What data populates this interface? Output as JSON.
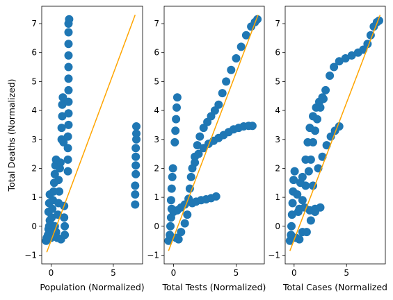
{
  "chart_data": [
    {
      "type": "scatter",
      "xlabel": "Population (Normalized)",
      "ylabel": "Total Deaths (Normalized)",
      "xlim": [
        -0.75,
        7.35
      ],
      "ylim": [
        -1.3,
        7.6
      ],
      "xticks": [
        {
          "v": 0,
          "label": "0"
        },
        {
          "v": 5,
          "label": "5"
        }
      ],
      "yticks": [
        {
          "v": -1,
          "label": "−1"
        },
        {
          "v": 0,
          "label": "0"
        },
        {
          "v": 1,
          "label": "1"
        },
        {
          "v": 2,
          "label": "2"
        },
        {
          "v": 3,
          "label": "3"
        },
        {
          "v": 4,
          "label": "4"
        },
        {
          "v": 5,
          "label": "5"
        },
        {
          "v": 6,
          "label": "6"
        },
        {
          "v": 7,
          "label": "7"
        }
      ],
      "grid": false,
      "marker_color": "#1f77b4",
      "fit_line_color": "#ffa500",
      "fit_line": [
        [
          -0.35,
          -0.9
        ],
        [
          6.75,
          7.3
        ]
      ],
      "series": [
        {
          "points": [
            [
              -0.4,
              -0.5
            ],
            [
              -0.35,
              -0.4
            ],
            [
              -0.3,
              -0.45
            ],
            [
              -0.25,
              -0.3
            ],
            [
              -0.2,
              -0.1
            ],
            [
              -0.15,
              0.0
            ],
            [
              -0.1,
              0.2
            ],
            [
              -0.2,
              0.5
            ],
            [
              -0.15,
              0.8
            ],
            [
              -0.1,
              1.1
            ],
            [
              -0.05,
              -0.2
            ],
            [
              0.0,
              -0.4
            ],
            [
              0.05,
              0.3
            ],
            [
              0.1,
              0.6
            ],
            [
              0.15,
              0.9
            ],
            [
              0.2,
              1.2
            ],
            [
              0.25,
              1.5
            ],
            [
              0.3,
              1.8
            ],
            [
              0.35,
              2.1
            ],
            [
              0.4,
              2.3
            ],
            [
              0.3,
              0.0
            ],
            [
              0.4,
              -0.2
            ],
            [
              0.5,
              -0.4
            ],
            [
              0.55,
              0.4
            ],
            [
              0.6,
              0.8
            ],
            [
              0.65,
              1.2
            ],
            [
              0.6,
              1.6
            ],
            [
              0.7,
              2.0
            ],
            [
              0.75,
              2.2
            ],
            [
              0.8,
              -0.45
            ],
            [
              0.85,
              3.0
            ],
            [
              0.85,
              3.4
            ],
            [
              0.9,
              3.8
            ],
            [
              0.9,
              4.2
            ],
            [
              0.95,
              4.45
            ],
            [
              1.0,
              2.9
            ],
            [
              1.05,
              0.7
            ],
            [
              1.05,
              0.3
            ],
            [
              1.1,
              0.0
            ],
            [
              1.1,
              -0.3
            ],
            [
              1.35,
              1.9
            ],
            [
              1.35,
              2.3
            ],
            [
              1.35,
              2.7
            ],
            [
              1.35,
              3.1
            ],
            [
              1.4,
              3.5
            ],
            [
              1.4,
              3.9
            ],
            [
              1.4,
              4.3
            ],
            [
              1.4,
              4.7
            ],
            [
              1.4,
              5.1
            ],
            [
              1.4,
              5.5
            ],
            [
              1.4,
              5.9
            ],
            [
              1.4,
              6.3
            ],
            [
              1.4,
              6.7
            ],
            [
              1.4,
              7.0
            ],
            [
              1.45,
              7.15
            ],
            [
              6.75,
              0.75
            ],
            [
              6.75,
              1.1
            ],
            [
              6.75,
              1.4
            ],
            [
              6.8,
              1.8
            ],
            [
              6.8,
              2.1
            ],
            [
              6.8,
              2.4
            ],
            [
              6.8,
              2.7
            ],
            [
              6.85,
              3.0
            ],
            [
              6.85,
              3.2
            ],
            [
              6.85,
              3.45
            ]
          ]
        }
      ]
    },
    {
      "type": "scatter",
      "xlabel": "Total Tests (Normalized)",
      "ylabel": "",
      "xlim": [
        -0.75,
        7.25
      ],
      "ylim": [
        -1.3,
        7.6
      ],
      "xticks": [
        {
          "v": 0,
          "label": "0"
        },
        {
          "v": 5,
          "label": "5"
        }
      ],
      "yticks": [
        {
          "v": -1,
          "label": "−1"
        },
        {
          "v": 0,
          "label": "0"
        },
        {
          "v": 1,
          "label": "1"
        },
        {
          "v": 2,
          "label": "2"
        },
        {
          "v": 3,
          "label": "3"
        },
        {
          "v": 4,
          "label": "4"
        },
        {
          "v": 5,
          "label": "5"
        },
        {
          "v": 6,
          "label": "6"
        },
        {
          "v": 7,
          "label": "7"
        }
      ],
      "grid": false,
      "marker_color": "#1f77b4",
      "fit_line_color": "#ffa500",
      "fit_line": [
        [
          -0.4,
          -0.85
        ],
        [
          6.75,
          7.3
        ]
      ],
      "series": [
        {
          "points": [
            [
              -0.4,
              -0.5
            ],
            [
              -0.3,
              -0.3
            ],
            [
              -0.25,
              0.0
            ],
            [
              -0.2,
              0.3
            ],
            [
              -0.15,
              0.6
            ],
            [
              -0.2,
              0.9
            ],
            [
              -0.15,
              1.3
            ],
            [
              -0.1,
              1.7
            ],
            [
              -0.05,
              2.0
            ],
            [
              0.0,
              0.5
            ],
            [
              0.1,
              2.9
            ],
            [
              0.15,
              3.3
            ],
            [
              0.2,
              3.7
            ],
            [
              0.25,
              4.1
            ],
            [
              0.3,
              4.45
            ],
            [
              0.2,
              -0.4
            ],
            [
              0.4,
              -0.45
            ],
            [
              0.3,
              0.55
            ],
            [
              0.6,
              0.65
            ],
            [
              0.9,
              0.75
            ],
            [
              1.2,
              0.95
            ],
            [
              1.3,
              1.3
            ],
            [
              1.4,
              1.7
            ],
            [
              1.5,
              2.0
            ],
            [
              1.7,
              2.4
            ],
            [
              1.9,
              2.8
            ],
            [
              2.1,
              3.1
            ],
            [
              2.4,
              3.4
            ],
            [
              2.7,
              3.6
            ],
            [
              3.0,
              3.8
            ],
            [
              3.3,
              4.0
            ],
            [
              3.6,
              4.2
            ],
            [
              3.9,
              4.6
            ],
            [
              4.2,
              5.0
            ],
            [
              4.6,
              5.4
            ],
            [
              5.0,
              5.8
            ],
            [
              5.4,
              6.2
            ],
            [
              5.8,
              6.6
            ],
            [
              6.2,
              6.9
            ],
            [
              6.5,
              7.05
            ],
            [
              6.7,
              7.15
            ],
            [
              1.5,
              0.8
            ],
            [
              1.8,
              0.85
            ],
            [
              2.2,
              0.9
            ],
            [
              2.6,
              0.93
            ],
            [
              3.0,
              0.97
            ],
            [
              3.4,
              1.03
            ],
            [
              1.7,
              2.2
            ],
            [
              2.0,
              2.5
            ],
            [
              2.4,
              2.7
            ],
            [
              2.8,
              2.85
            ],
            [
              3.2,
              2.95
            ],
            [
              3.6,
              3.05
            ],
            [
              4.0,
              3.15
            ],
            [
              4.4,
              3.25
            ],
            [
              4.8,
              3.35
            ],
            [
              5.2,
              3.4
            ],
            [
              5.6,
              3.45
            ],
            [
              6.0,
              3.47
            ],
            [
              6.3,
              3.47
            ],
            [
              0.6,
              -0.2
            ],
            [
              0.9,
              0.1
            ],
            [
              1.1,
              0.4
            ]
          ]
        }
      ]
    },
    {
      "type": "scatter",
      "xlabel": "Total Cases (Normalized",
      "ylabel": "",
      "xlim": [
        -0.85,
        8.7
      ],
      "ylim": [
        -1.3,
        7.6
      ],
      "xticks": [
        {
          "v": 0,
          "label": "0"
        },
        {
          "v": 5,
          "label": "5"
        }
      ],
      "yticks": [
        {
          "v": -1,
          "label": "−1"
        },
        {
          "v": 0,
          "label": "0"
        },
        {
          "v": 1,
          "label": "1"
        },
        {
          "v": 2,
          "label": "2"
        },
        {
          "v": 3,
          "label": "3"
        },
        {
          "v": 4,
          "label": "4"
        },
        {
          "v": 5,
          "label": "5"
        },
        {
          "v": 6,
          "label": "6"
        },
        {
          "v": 7,
          "label": "7"
        }
      ],
      "grid": false,
      "marker_color": "#1f77b4",
      "fit_line_color": "#ffa500",
      "fit_line": [
        [
          -0.4,
          -0.85
        ],
        [
          8.2,
          7.3
        ]
      ],
      "series": [
        {
          "points": [
            [
              -0.4,
              -0.5
            ],
            [
              -0.3,
              -0.3
            ],
            [
              -0.25,
              0.0
            ],
            [
              -0.2,
              0.4
            ],
            [
              -0.15,
              0.8
            ],
            [
              -0.1,
              1.2
            ],
            [
              -0.05,
              1.6
            ],
            [
              0.05,
              1.9
            ],
            [
              0.2,
              -0.4
            ],
            [
              0.5,
              -0.45
            ],
            [
              0.8,
              -0.2
            ],
            [
              0.4,
              0.5
            ],
            [
              0.8,
              0.9
            ],
            [
              1.1,
              1.4
            ],
            [
              1.4,
              1.9
            ],
            [
              1.6,
              2.3
            ],
            [
              1.8,
              2.9
            ],
            [
              2.0,
              3.3
            ],
            [
              2.2,
              3.7
            ],
            [
              2.5,
              4.1
            ],
            [
              2.8,
              4.4
            ],
            [
              3.0,
              4.7
            ],
            [
              3.4,
              5.2
            ],
            [
              3.8,
              5.5
            ],
            [
              4.3,
              5.7
            ],
            [
              4.9,
              5.8
            ],
            [
              5.5,
              5.9
            ],
            [
              6.1,
              6.0
            ],
            [
              6.6,
              6.1
            ],
            [
              7.0,
              6.3
            ],
            [
              7.3,
              6.6
            ],
            [
              7.6,
              6.9
            ],
            [
              7.9,
              7.05
            ],
            [
              8.1,
              7.1
            ],
            [
              0.8,
              1.7
            ],
            [
              1.1,
              2.3
            ],
            [
              1.3,
              2.9
            ],
            [
              1.5,
              3.4
            ],
            [
              1.8,
              3.8
            ],
            [
              2.1,
              4.1
            ],
            [
              2.4,
              4.3
            ],
            [
              2.7,
              4.45
            ],
            [
              0.5,
              0.6
            ],
            [
              1.0,
              0.65
            ],
            [
              1.5,
              0.55
            ],
            [
              2.0,
              0.6
            ],
            [
              2.5,
              0.65
            ],
            [
              1.8,
              1.4
            ],
            [
              2.3,
              2.0
            ],
            [
              2.7,
              2.4
            ],
            [
              3.1,
              2.8
            ],
            [
              3.5,
              3.1
            ],
            [
              3.9,
              3.3
            ],
            [
              4.3,
              3.45
            ],
            [
              0.3,
              1.1
            ],
            [
              0.6,
              1.5
            ],
            [
              1.2,
              -0.2
            ],
            [
              1.6,
              0.2
            ],
            [
              2.0,
              0.5
            ]
          ]
        }
      ]
    }
  ]
}
